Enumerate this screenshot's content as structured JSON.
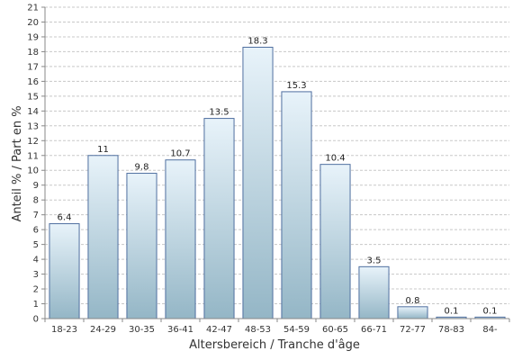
{
  "chart_data": {
    "type": "bar",
    "title": "",
    "xlabel": "Altersbereich / Tranche d'âge",
    "ylabel": "Anteil % / Part en %",
    "categories": [
      "18-23",
      "24-29",
      "30-35",
      "36-41",
      "42-47",
      "48-53",
      "54-59",
      "60-65",
      "66-71",
      "72-77",
      "78-83",
      "84-"
    ],
    "values": [
      6.4,
      11,
      9.8,
      10.7,
      13.5,
      18.3,
      15.3,
      10.4,
      3.5,
      0.8,
      0.1,
      0.1
    ],
    "data_labels": [
      "6.4",
      "11",
      "9.8",
      "10.7",
      "13.5",
      "18.3",
      "15.3",
      "10.4",
      "3.5",
      "0.8",
      "0.1",
      "0.1"
    ],
    "ylim": [
      0,
      21
    ],
    "yticks": [
      0,
      1,
      2,
      3,
      4,
      5,
      6,
      7,
      8,
      9,
      10,
      11,
      12,
      13,
      14,
      15,
      16,
      17,
      18,
      19,
      20,
      21
    ],
    "grid": true,
    "legend": "none",
    "colors": {
      "bar_top": "#e8f3fa",
      "bar_bottom": "#94b6c6",
      "bar_stroke": "#4f6fa0",
      "grid": "#c8c8c8",
      "axis": "#888888"
    }
  }
}
